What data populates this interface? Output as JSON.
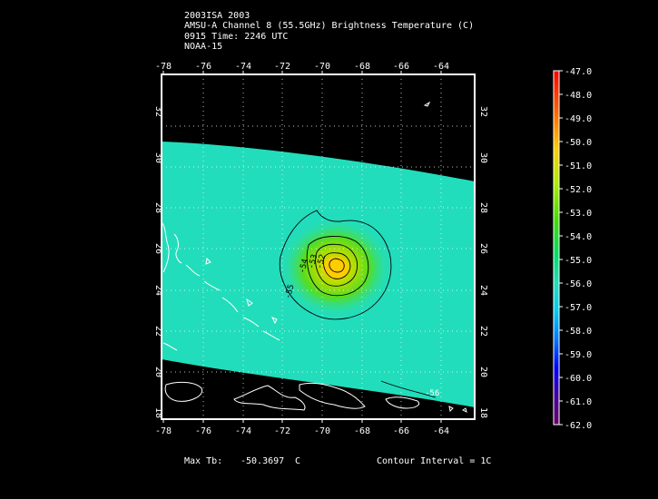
{
  "header": {
    "line1": "2003ISA 2003",
    "line2": "AMSU-A Channel 8 (55.5GHz) Brightness Temperature (C)",
    "line3": "0915 Time: 2246 UTC",
    "line4": "NOAA-15"
  },
  "axes": {
    "lon_ticks": [
      "-78",
      "-76",
      "-74",
      "-72",
      "-70",
      "-68",
      "-66",
      "-64"
    ],
    "lat_ticks": [
      "18",
      "20",
      "22",
      "24",
      "26",
      "28",
      "30",
      "32"
    ]
  },
  "contours": {
    "labels": [
      "-54",
      "-53",
      "-52",
      "-55",
      "-56"
    ]
  },
  "colorbar": {
    "labels": [
      "-47.0",
      "-48.0",
      "-49.0",
      "-50.0",
      "-51.0",
      "-52.0",
      "-53.0",
      "-54.0",
      "-55.0",
      "-56.0",
      "-57.0",
      "-58.0",
      "-59.0",
      "-60.0",
      "-61.0",
      "-62.0"
    ],
    "colors": {
      "top": "#ff0000",
      "high": "#ffcc00",
      "mid_high": "#66dd00",
      "mid": "#00ee88",
      "swath": "#22ddbb",
      "low": "#00aaff",
      "lower": "#0000ff",
      "bottom": "#660066"
    }
  },
  "footer": {
    "max_label": "Max Tb:",
    "max_value": "-50.3697",
    "max_unit": "C",
    "contour_interval": "Contour Interval = 1C"
  }
}
